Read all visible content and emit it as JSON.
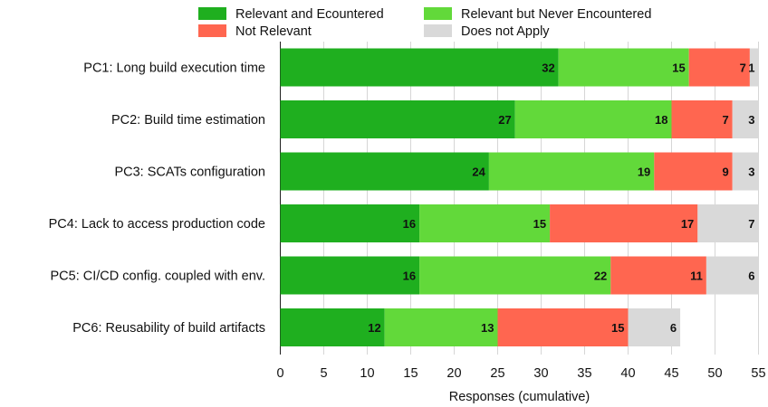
{
  "chart_data": {
    "type": "bar",
    "orientation": "horizontal",
    "stacked": true,
    "categories": [
      "PC1: Long build execution time",
      "PC2: Build time estimation",
      "PC3: SCATs configuration",
      "PC4: Lack to access production code",
      "PC5: CI/CD config. coupled with env.",
      "PC6: Reusability of build artifacts"
    ],
    "series": [
      {
        "name": "Relevant and Ecountered",
        "color": "#1faf1f",
        "values": [
          32,
          27,
          24,
          16,
          16,
          12
        ]
      },
      {
        "name": "Relevant but Never Encountered",
        "color": "#62d93a",
        "values": [
          15,
          18,
          19,
          15,
          22,
          13
        ]
      },
      {
        "name": "Not Relevant",
        "color": "#ff6650",
        "values": [
          7,
          7,
          9,
          17,
          11,
          15
        ]
      },
      {
        "name": "Does not Apply",
        "color": "#d9d9d9",
        "values": [
          1,
          3,
          3,
          7,
          6,
          6
        ]
      }
    ],
    "xlabel": "Responses (cumulative)",
    "ylabel": "",
    "xlim": [
      0,
      55
    ],
    "xticks": [
      0,
      5,
      10,
      15,
      20,
      25,
      30,
      35,
      40,
      45,
      50,
      55
    ],
    "grid": true,
    "legend_position": "top"
  }
}
